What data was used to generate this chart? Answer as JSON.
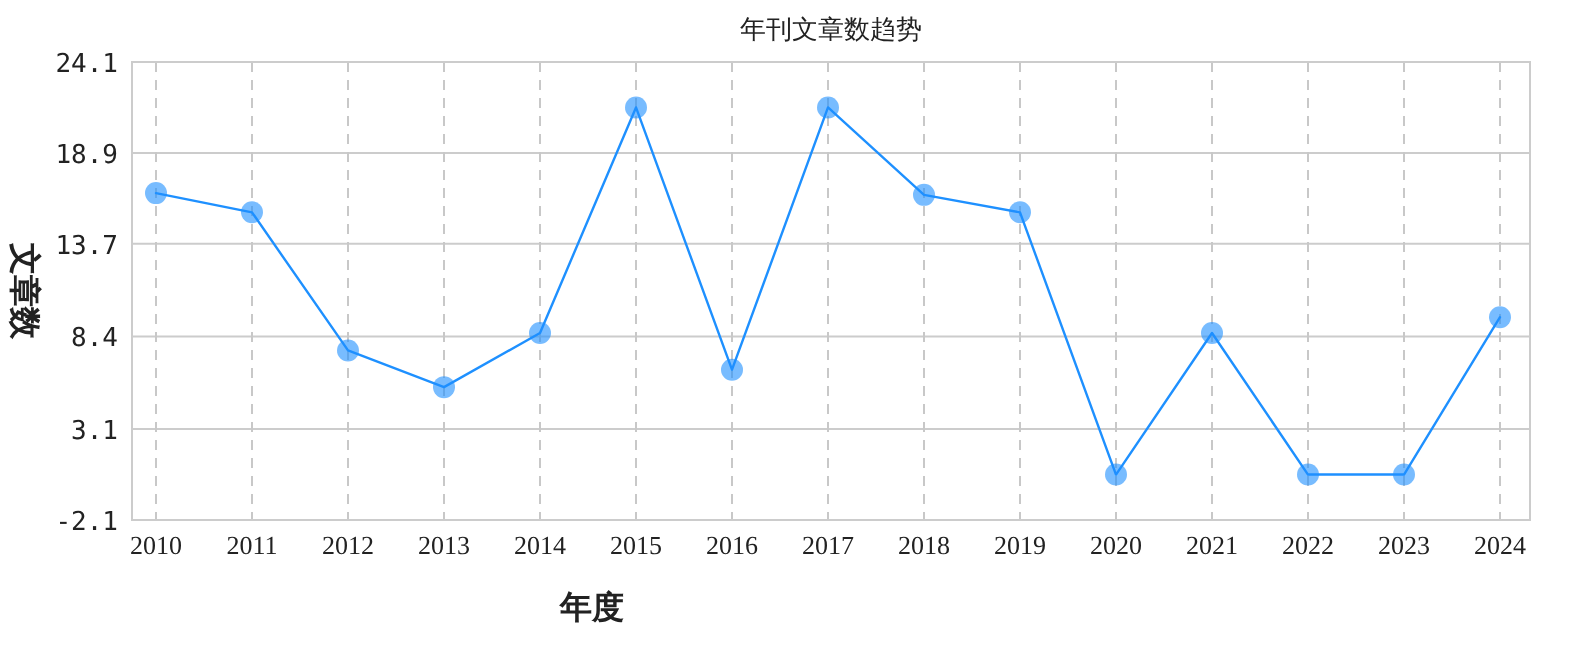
{
  "chart_data": {
    "type": "line",
    "title": "年刊文章数趋势",
    "xlabel": "年度",
    "ylabel": "文章数",
    "categories": [
      "2010",
      "2011",
      "2012",
      "2013",
      "2014",
      "2015",
      "2016",
      "2017",
      "2018",
      "2019",
      "2020",
      "2021",
      "2022",
      "2023",
      "2024"
    ],
    "series": [
      {
        "color": "#1e90ff",
        "values": [
          16.6,
          15.5,
          7.6,
          5.5,
          8.6,
          21.5,
          6.5,
          21.5,
          16.5,
          15.5,
          0.5,
          8.6,
          0.5,
          0.5,
          9.5
        ]
      }
    ],
    "ylim": [
      -2.1,
      24.1
    ],
    "yticks": [
      -2.1,
      3.1,
      8.4,
      13.7,
      18.9,
      24.1
    ],
    "grid": true,
    "marker": "circle"
  }
}
